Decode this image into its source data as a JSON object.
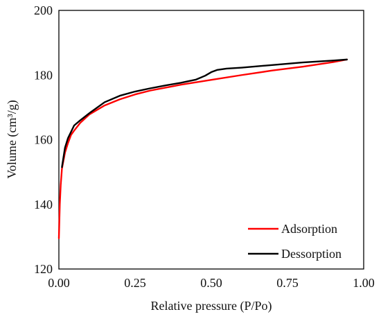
{
  "chart_data": {
    "type": "line",
    "xlabel": "Relative pressure (P/Po)",
    "ylabel": "Volume (cm³/g)",
    "xlim": [
      0.0,
      1.0
    ],
    "ylim": [
      120,
      200
    ],
    "x_ticks": [
      "0.00",
      "0.25",
      "0.50",
      "0.75",
      "1.00"
    ],
    "y_ticks": [
      "120",
      "140",
      "160",
      "180",
      "200"
    ],
    "grid": false,
    "legend_position": "bottom-right",
    "series": [
      {
        "name": "Adsorption",
        "color": "#ff0000",
        "x": [
          0.0,
          0.003,
          0.006,
          0.01,
          0.02,
          0.03,
          0.04,
          0.05,
          0.07,
          0.1,
          0.15,
          0.2,
          0.25,
          0.3,
          0.4,
          0.5,
          0.6,
          0.7,
          0.8,
          0.9,
          0.945
        ],
        "y": [
          129.5,
          140,
          146,
          151,
          156,
          159,
          161.5,
          162.8,
          165.2,
          167.8,
          170.6,
          172.5,
          174.0,
          175.2,
          177.0,
          178.5,
          180.0,
          181.4,
          182.6,
          184.0,
          184.8
        ]
      },
      {
        "name": "Dessorption",
        "color": "#000000",
        "x": [
          0.945,
          0.9,
          0.8,
          0.7,
          0.6,
          0.55,
          0.52,
          0.5,
          0.48,
          0.45,
          0.42,
          0.4,
          0.35,
          0.3,
          0.25,
          0.2,
          0.15,
          0.1,
          0.07,
          0.05,
          0.03,
          0.02,
          0.01
        ],
        "y": [
          184.8,
          184.5,
          183.9,
          183.1,
          182.3,
          182.0,
          181.6,
          180.9,
          179.8,
          178.6,
          178.0,
          177.6,
          176.8,
          175.9,
          174.9,
          173.6,
          171.6,
          168.2,
          166.0,
          164.4,
          160.5,
          157.5,
          151.5
        ]
      }
    ]
  }
}
